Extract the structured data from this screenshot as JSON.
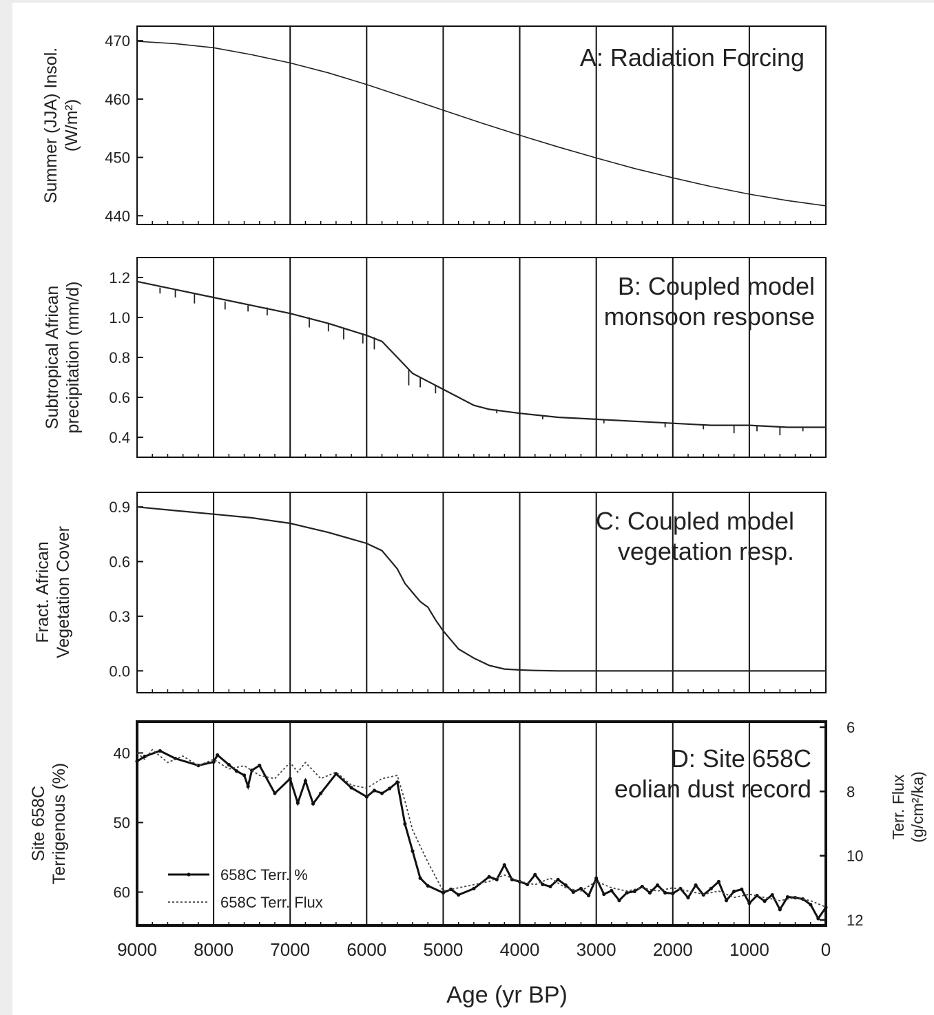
{
  "figure": {
    "x_axis_label": "Age (yr BP)",
    "x_ticks": [
      9000,
      8000,
      7000,
      6000,
      5000,
      4000,
      3000,
      2000,
      1000,
      0
    ]
  },
  "chart_data": [
    {
      "id": "A",
      "type": "line",
      "title": "A: Radiation Forcing",
      "ylabel_lines": [
        "Summer (JJA) Insol.",
        "(W/m²)"
      ],
      "xlim": [
        9000,
        0
      ],
      "ylim": [
        438.5,
        472.5
      ],
      "yticks": [
        440,
        450,
        460,
        470
      ],
      "grid_x": true,
      "series": [
        {
          "x": [
            9000,
            8500,
            8000,
            7500,
            7000,
            6500,
            6000,
            5500,
            5000,
            4500,
            4000,
            3500,
            3000,
            2500,
            2000,
            1500,
            1000,
            500,
            0
          ],
          "y": [
            469.9,
            469.5,
            468.8,
            467.6,
            466.2,
            464.5,
            462.5,
            460.3,
            458.1,
            455.9,
            453.8,
            451.8,
            449.9,
            448.1,
            446.5,
            445.0,
            443.7,
            442.6,
            441.7
          ]
        }
      ]
    },
    {
      "id": "B",
      "type": "line",
      "title_lines": [
        "B: Coupled model",
        "monsoon response"
      ],
      "ylabel_lines": [
        "Subtropical African",
        "precipitation (mm/d)"
      ],
      "xlim": [
        9000,
        0
      ],
      "ylim": [
        0.3,
        1.3
      ],
      "yticks": [
        0.4,
        0.6,
        0.8,
        1.0,
        1.2
      ],
      "grid_x": true,
      "series": [
        {
          "x": [
            9000,
            8500,
            8000,
            7500,
            7000,
            6500,
            6000,
            5800,
            5600,
            5400,
            5200,
            5000,
            4800,
            4600,
            4400,
            4200,
            4000,
            3500,
            3000,
            2500,
            2000,
            1500,
            1000,
            500,
            0
          ],
          "y": [
            1.18,
            1.14,
            1.1,
            1.06,
            1.02,
            0.97,
            0.91,
            0.88,
            0.8,
            0.72,
            0.68,
            0.64,
            0.6,
            0.56,
            0.54,
            0.53,
            0.52,
            0.5,
            0.49,
            0.48,
            0.47,
            0.46,
            0.46,
            0.45,
            0.45
          ]
        }
      ],
      "downspikes": [
        {
          "x": 8700,
          "y": 1.15,
          "depth": 0.03
        },
        {
          "x": 8500,
          "y": 1.14,
          "depth": 0.04
        },
        {
          "x": 8250,
          "y": 1.12,
          "depth": 0.05
        },
        {
          "x": 7850,
          "y": 1.08,
          "depth": 0.04
        },
        {
          "x": 7550,
          "y": 1.06,
          "depth": 0.03
        },
        {
          "x": 7300,
          "y": 1.05,
          "depth": 0.04
        },
        {
          "x": 7000,
          "y": 1.02,
          "depth": 0.08
        },
        {
          "x": 6750,
          "y": 1.0,
          "depth": 0.05
        },
        {
          "x": 6500,
          "y": 0.97,
          "depth": 0.04
        },
        {
          "x": 6300,
          "y": 0.95,
          "depth": 0.06
        },
        {
          "x": 6050,
          "y": 0.92,
          "depth": 0.05
        },
        {
          "x": 5900,
          "y": 0.9,
          "depth": 0.06
        },
        {
          "x": 5450,
          "y": 0.74,
          "depth": 0.08
        },
        {
          "x": 5300,
          "y": 0.7,
          "depth": 0.05
        },
        {
          "x": 5100,
          "y": 0.66,
          "depth": 0.04
        },
        {
          "x": 4300,
          "y": 0.54,
          "depth": 0.02
        },
        {
          "x": 3700,
          "y": 0.51,
          "depth": 0.02
        },
        {
          "x": 2900,
          "y": 0.49,
          "depth": 0.02
        },
        {
          "x": 2100,
          "y": 0.47,
          "depth": 0.02
        },
        {
          "x": 1600,
          "y": 0.46,
          "depth": 0.02
        },
        {
          "x": 1200,
          "y": 0.46,
          "depth": 0.04
        },
        {
          "x": 900,
          "y": 0.46,
          "depth": 0.03
        },
        {
          "x": 600,
          "y": 0.45,
          "depth": 0.04
        },
        {
          "x": 300,
          "y": 0.45,
          "depth": 0.02
        }
      ]
    },
    {
      "id": "C",
      "type": "line",
      "title_lines": [
        "C: Coupled model",
        "vegetation resp."
      ],
      "ylabel_lines": [
        "Fract. African",
        "Vegetation Cover"
      ],
      "xlim": [
        9000,
        0
      ],
      "ylim": [
        -0.12,
        0.98
      ],
      "yticks": [
        0.0,
        0.3,
        0.6,
        0.9
      ],
      "ytick_labels": [
        "0.0",
        "0.3",
        "0.6",
        "0.9"
      ],
      "grid_x": true,
      "series": [
        {
          "x": [
            9000,
            8500,
            8000,
            7500,
            7000,
            6500,
            6000,
            5800,
            5600,
            5500,
            5400,
            5300,
            5200,
            5100,
            5000,
            4900,
            4800,
            4600,
            4400,
            4200,
            4000,
            3800,
            3500,
            3000,
            2000,
            1000,
            0
          ],
          "y": [
            0.9,
            0.88,
            0.86,
            0.84,
            0.81,
            0.76,
            0.7,
            0.66,
            0.56,
            0.48,
            0.43,
            0.38,
            0.35,
            0.28,
            0.22,
            0.17,
            0.12,
            0.07,
            0.03,
            0.01,
            0.005,
            0.002,
            0.0,
            0.0,
            0.0,
            0.0,
            0.0
          ]
        }
      ]
    },
    {
      "id": "D",
      "type": "line",
      "title_lines": [
        "D: Site 658C",
        "eolian dust record"
      ],
      "ylabel_lines": [
        "Site 658C",
        "Terrigenous (%)"
      ],
      "ylabel_right_lines": [
        "Terr. Flux",
        "(g/cm²/ka)"
      ],
      "xlim": [
        9000,
        0
      ],
      "ylim": [
        35.5,
        64.8
      ],
      "yticks": [
        40,
        50,
        60
      ],
      "y_inverted": true,
      "yticks_right": [
        6,
        8,
        10,
        12
      ],
      "ylim_right": [
        6.0,
        12.0
      ],
      "legend": {
        "location": "lower-left"
      },
      "series": [
        {
          "name": "658C Terr. %",
          "x": [
            9000,
            8900,
            8700,
            8500,
            8200,
            8000,
            7950,
            7800,
            7700,
            7600,
            7550,
            7500,
            7400,
            7200,
            7000,
            6900,
            6800,
            6700,
            6600,
            6400,
            6200,
            6000,
            5900,
            5800,
            5700,
            5600,
            5500,
            5400,
            5300,
            5200,
            5000,
            4900,
            4800,
            4600,
            4400,
            4300,
            4200,
            4100,
            4000,
            3900,
            3800,
            3700,
            3600,
            3500,
            3400,
            3300,
            3200,
            3100,
            3000,
            2900,
            2800,
            2700,
            2600,
            2500,
            2400,
            2300,
            2200,
            2100,
            2000,
            1900,
            1800,
            1700,
            1600,
            1500,
            1400,
            1300,
            1200,
            1100,
            1000,
            900,
            800,
            700,
            600,
            500,
            400,
            300,
            200,
            100,
            0
          ],
          "y": [
            41.2,
            40.5,
            39.7,
            40.8,
            41.8,
            41.3,
            40.3,
            41.7,
            42.6,
            43.2,
            44.8,
            42.5,
            41.8,
            45.8,
            43.7,
            47.2,
            44.0,
            47.3,
            45.8,
            43.0,
            45.0,
            46.3,
            45.4,
            45.8,
            45.1,
            44.2,
            50.2,
            54.1,
            58.0,
            59.1,
            60.1,
            59.6,
            60.4,
            59.5,
            57.8,
            58.2,
            56.1,
            58.2,
            58.5,
            58.9,
            57.5,
            58.9,
            59.2,
            58.2,
            59.0,
            60.0,
            59.5,
            60.5,
            58.0,
            60.3,
            59.8,
            61.2,
            60.1,
            59.9,
            59.2,
            60.1,
            59.0,
            60.1,
            60.2,
            59.5,
            60.8,
            59.0,
            60.4,
            59.5,
            58.5,
            61.2,
            59.9,
            59.6,
            61.6,
            60.5,
            61.3,
            60.4,
            62.5,
            60.7,
            60.8,
            61.0,
            61.8,
            63.8,
            62.2
          ]
        },
        {
          "name": "658C Terr. Flux",
          "x": [
            9000,
            8900,
            8800,
            8600,
            8400,
            8200,
            8000,
            7800,
            7600,
            7400,
            7200,
            7000,
            6900,
            6800,
            6600,
            6400,
            6200,
            6000,
            5800,
            5600,
            5500,
            5400,
            5200,
            5000,
            4800,
            4600,
            4400,
            4200,
            4000,
            3800,
            3600,
            3400,
            3200,
            3000,
            2800,
            2600,
            2400,
            2200,
            2000,
            1800,
            1600,
            1400,
            1200,
            1000,
            800,
            600,
            400,
            200,
            0
          ],
          "y": [
            6.8,
            7.0,
            6.7,
            7.1,
            6.9,
            7.2,
            7.0,
            7.3,
            7.2,
            7.5,
            7.6,
            7.1,
            7.4,
            7.1,
            7.6,
            7.4,
            7.8,
            7.9,
            7.6,
            7.5,
            8.3,
            9.2,
            10.2,
            11.1,
            11.0,
            10.9,
            10.8,
            10.6,
            10.8,
            10.9,
            10.7,
            11.0,
            11.1,
            10.8,
            11.0,
            11.1,
            11.0,
            11.1,
            11.0,
            11.1,
            11.2,
            11.1,
            11.3,
            11.2,
            11.3,
            11.4,
            11.3,
            11.4,
            11.6
          ]
        }
      ]
    }
  ]
}
